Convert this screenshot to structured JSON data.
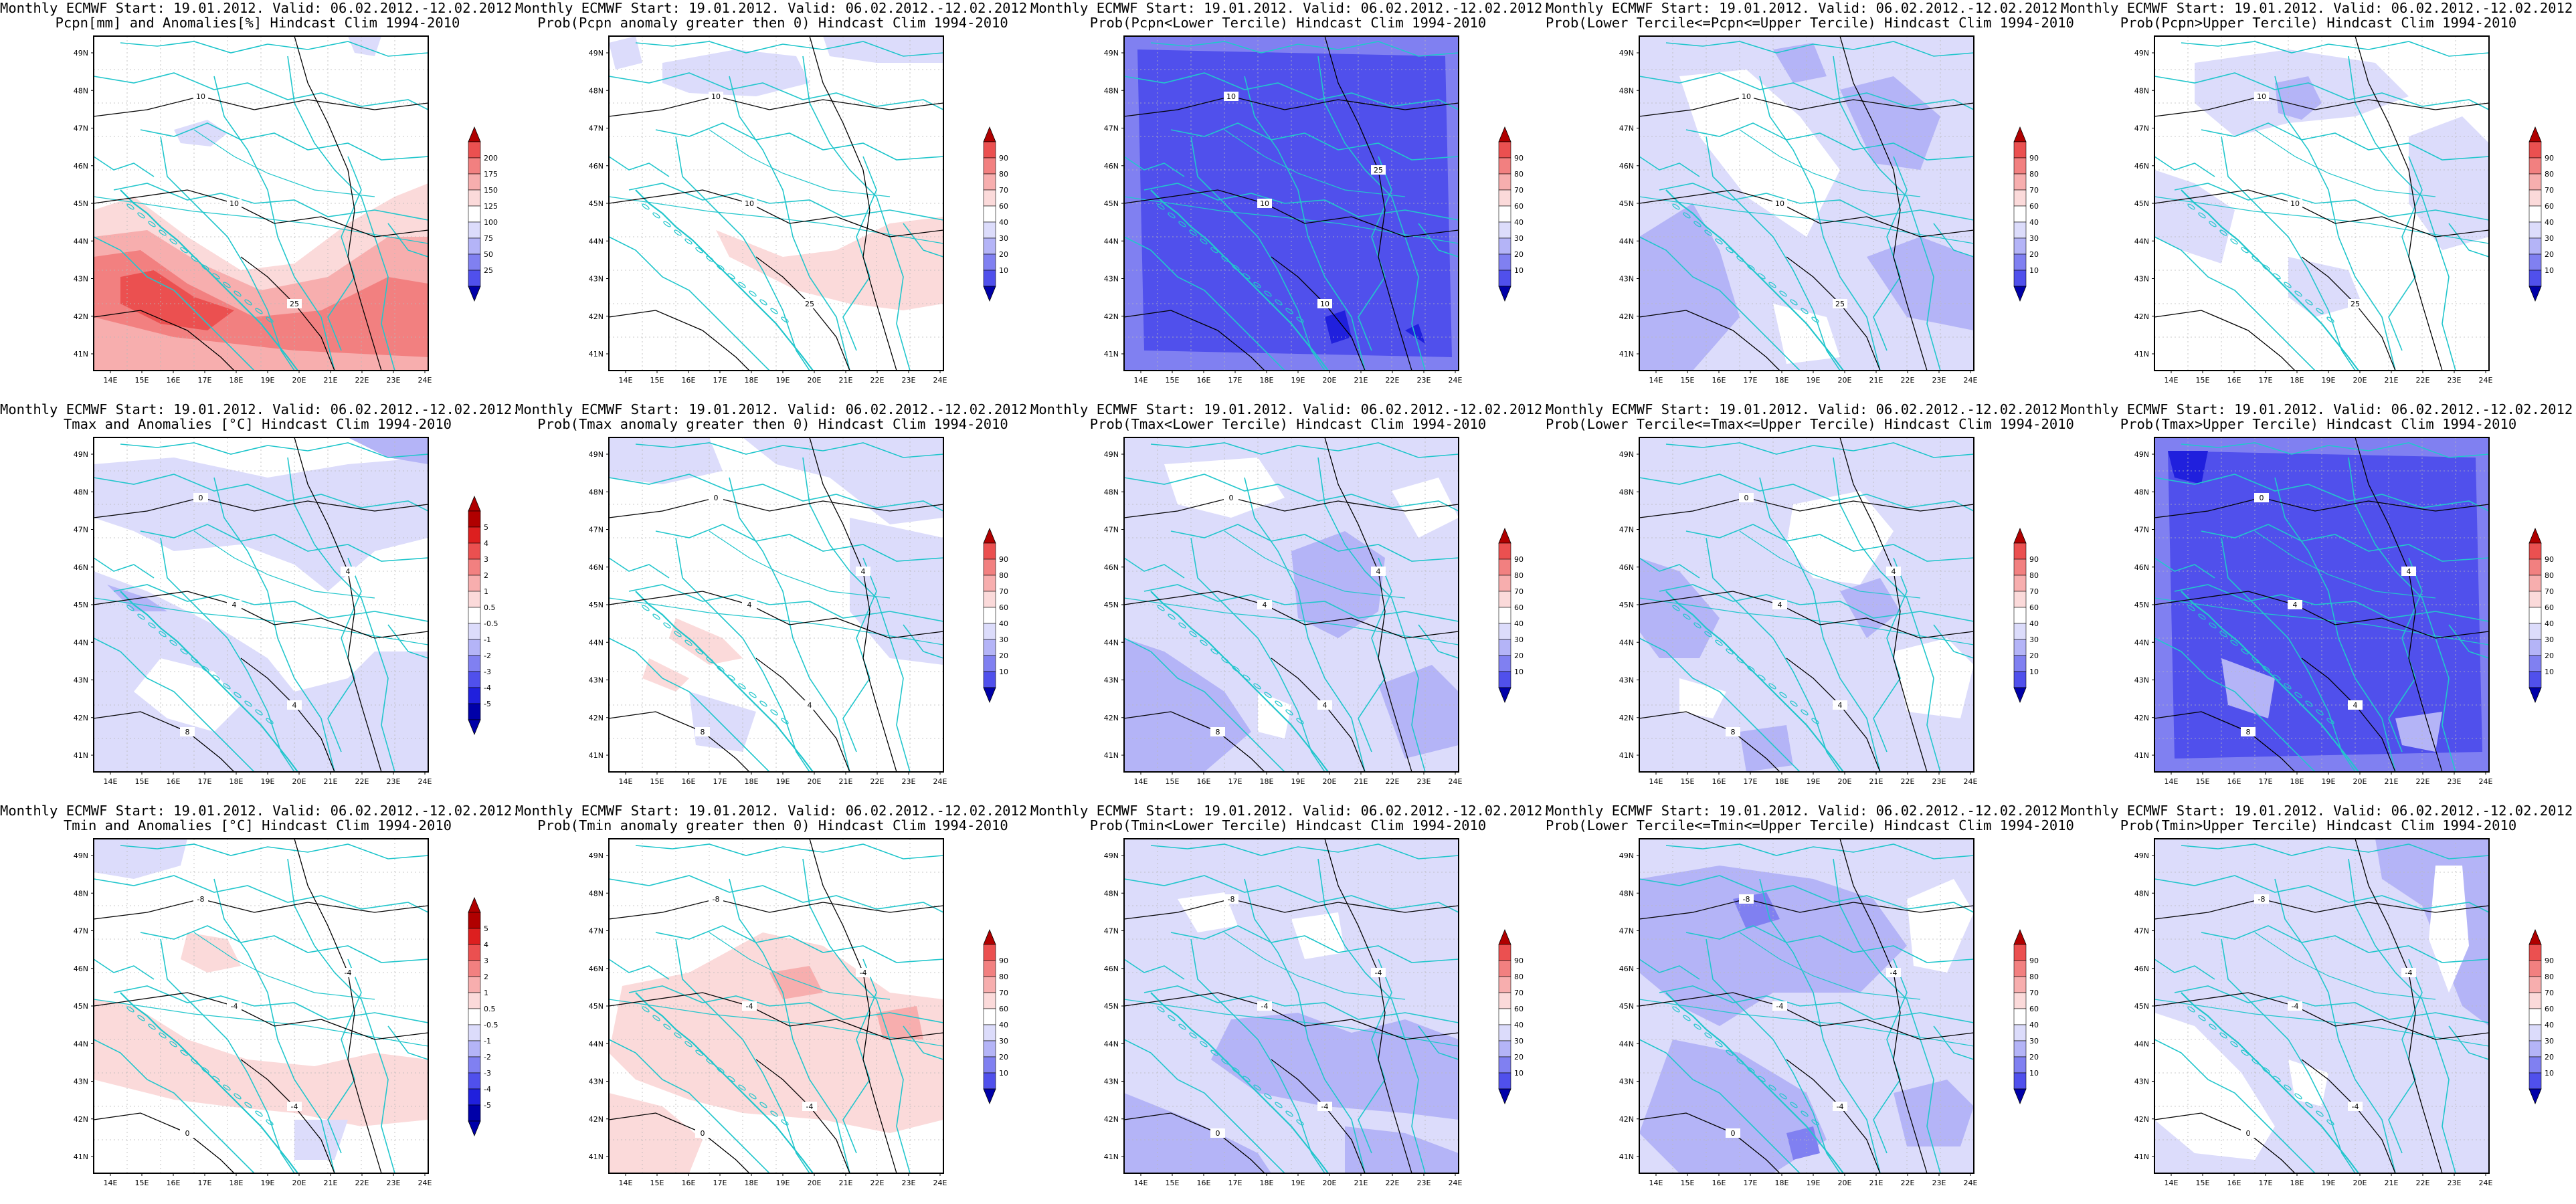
{
  "colors": {
    "red": [
      "#fbdada",
      "#f7aeae",
      "#f28080",
      "#eb5050",
      "#dd1f1f",
      "#b00000"
    ],
    "blue": [
      "#dcdcfb",
      "#b4b4f7",
      "#8080f1",
      "#5050ec",
      "#2020dd",
      "#0000a8"
    ],
    "land_border": "#22c6cc",
    "contour": "#000000"
  },
  "map": {
    "lat_labels": [
      "41N",
      "42N",
      "43N",
      "44N",
      "45N",
      "46N",
      "47N",
      "48N",
      "49N"
    ],
    "lon_labels": [
      "14E",
      "15E",
      "16E",
      "17E",
      "18E",
      "19E",
      "20E",
      "21E",
      "22E",
      "23E",
      "24E"
    ]
  },
  "colorbars": {
    "pcpn": [
      "25",
      "50",
      "75",
      "100",
      "125",
      "150",
      "175",
      "200"
    ],
    "temp": [
      "-5",
      "-4",
      "-3",
      "-2",
      "-1",
      "-0.5",
      "0.5",
      "1",
      "2",
      "3",
      "4",
      "5"
    ],
    "prob": [
      "10",
      "20",
      "30",
      "40",
      "60",
      "70",
      "80",
      "90"
    ]
  },
  "panels": [
    {
      "title1": "Monthly ECMWF Start: 19.01.2012. Valid: 06.02.2012.-12.02.2012.",
      "title2": "Pcpn[mm] and Anomalies[%] Hindcast Clim 1994-2010",
      "scale": "pcpn",
      "field": "p_anom",
      "contours": [
        "10",
        "10",
        "25"
      ]
    },
    {
      "title1": "Monthly ECMWF Start: 19.01.2012. Valid: 06.02.2012.-12.02.2012.",
      "title2": "Prob(Pcpn anomaly greater then 0) Hindcast Clim 1994-2010",
      "scale": "prob",
      "field": "p_gt0",
      "contours": [
        "10",
        "10",
        "25"
      ]
    },
    {
      "title1": "Monthly ECMWF Start: 19.01.2012. Valid: 06.02.2012.-12.02.2012.",
      "title2": "Prob(Pcpn<Lower Tercile) Hindcast Clim 1994-2010",
      "scale": "prob",
      "field": "p_low",
      "contours": [
        "10",
        "10",
        "10",
        "25"
      ]
    },
    {
      "title1": "Monthly ECMWF Start: 19.01.2012. Valid: 06.02.2012.-12.02.2012.",
      "title2": "Prob(Lower Tercile<=Pcpn<=Upper Tercile) Hindcast Clim 1994-2010",
      "scale": "prob",
      "field": "p_mid",
      "contours": [
        "10",
        "10",
        "25"
      ]
    },
    {
      "title1": "Monthly ECMWF Start: 19.01.2012. Valid: 06.02.2012.-12.02.2012.",
      "title2": "Prob(Pcpn>Upper Tercile) Hindcast Clim 1994-2010",
      "scale": "prob",
      "field": "p_up",
      "contours": [
        "10",
        "10",
        "25"
      ]
    },
    {
      "title1": "Monthly ECMWF Start: 19.01.2012. Valid: 06.02.2012.-12.02.2012.",
      "title2": "Tmax and Anomalies [°C] Hindcast Clim 1994-2010",
      "scale": "temp",
      "field": "tx_anom",
      "contours": [
        "0",
        "4",
        "4",
        "4",
        "8"
      ]
    },
    {
      "title1": "Monthly ECMWF Start: 19.01.2012. Valid: 06.02.2012.-12.02.2012.",
      "title2": "Prob(Tmax anomaly greater then 0) Hindcast Clim 1994-2010",
      "scale": "prob",
      "field": "tx_gt0",
      "contours": [
        "0",
        "4",
        "4",
        "4",
        "8"
      ]
    },
    {
      "title1": "Monthly ECMWF Start: 19.01.2012. Valid: 06.02.2012.-12.02.2012.",
      "title2": "Prob(Tmax<Lower Tercile) Hindcast Clim 1994-2010",
      "scale": "prob",
      "field": "tx_low",
      "contours": [
        "0",
        "4",
        "4",
        "4",
        "8"
      ]
    },
    {
      "title1": "Monthly ECMWF Start: 19.01.2012. Valid: 06.02.2012.-12.02.2012.",
      "title2": "Prob(Lower Tercile<=Tmax<=Upper Tercile) Hindcast Clim 1994-2010",
      "scale": "prob",
      "field": "tx_mid",
      "contours": [
        "0",
        "4",
        "4",
        "4",
        "8"
      ]
    },
    {
      "title1": "Monthly ECMWF Start: 19.01.2012. Valid: 06.02.2012.-12.02.2012.",
      "title2": "Prob(Tmax>Upper Tercile) Hindcast Clim 1994-2010",
      "scale": "prob",
      "field": "tx_up",
      "contours": [
        "0",
        "4",
        "4",
        "4",
        "8"
      ]
    },
    {
      "title1": "Monthly ECMWF Start: 19.01.2012. Valid: 06.02.2012.-12.02.2012.",
      "title2": "Tmin and Anomalies [°C] Hindcast Clim 1994-2010",
      "scale": "temp",
      "field": "tn_anom",
      "contours": [
        "-8",
        "-4",
        "-4",
        "-4",
        "0"
      ]
    },
    {
      "title1": "Monthly ECMWF Start: 19.01.2012. Valid: 06.02.2012.-12.02.2012.",
      "title2": "Prob(Tmin anomaly greater then 0) Hindcast Clim 1994-2010",
      "scale": "prob",
      "field": "tn_gt0",
      "contours": [
        "-8",
        "-4",
        "-4",
        "-4",
        "0"
      ]
    },
    {
      "title1": "Monthly ECMWF Start: 19.01.2012. Valid: 06.02.2012.-12.02.2012.",
      "title2": "Prob(Tmin<Lower Tercile) Hindcast Clim 1994-2010",
      "scale": "prob",
      "field": "tn_low",
      "contours": [
        "-8",
        "-4",
        "-4",
        "-4",
        "0"
      ]
    },
    {
      "title1": "Monthly ECMWF Start: 19.01.2012. Valid: 06.02.2012.-12.02.2012.",
      "title2": "Prob(Lower Tercile<=Tmin<=Upper Tercile) Hindcast Clim 1994-2010",
      "scale": "prob",
      "field": "tn_mid",
      "contours": [
        "-8",
        "-4",
        "-4",
        "-4",
        "0"
      ]
    },
    {
      "title1": "Monthly ECMWF Start: 19.01.2012. Valid: 06.02.2012.-12.02.2012.",
      "title2": "Prob(Tmin>Upper Tercile) Hindcast Clim 1994-2010",
      "scale": "prob",
      "field": "tn_up",
      "contours": [
        "-8",
        "-4",
        "-4",
        "-4",
        "0"
      ]
    }
  ]
}
